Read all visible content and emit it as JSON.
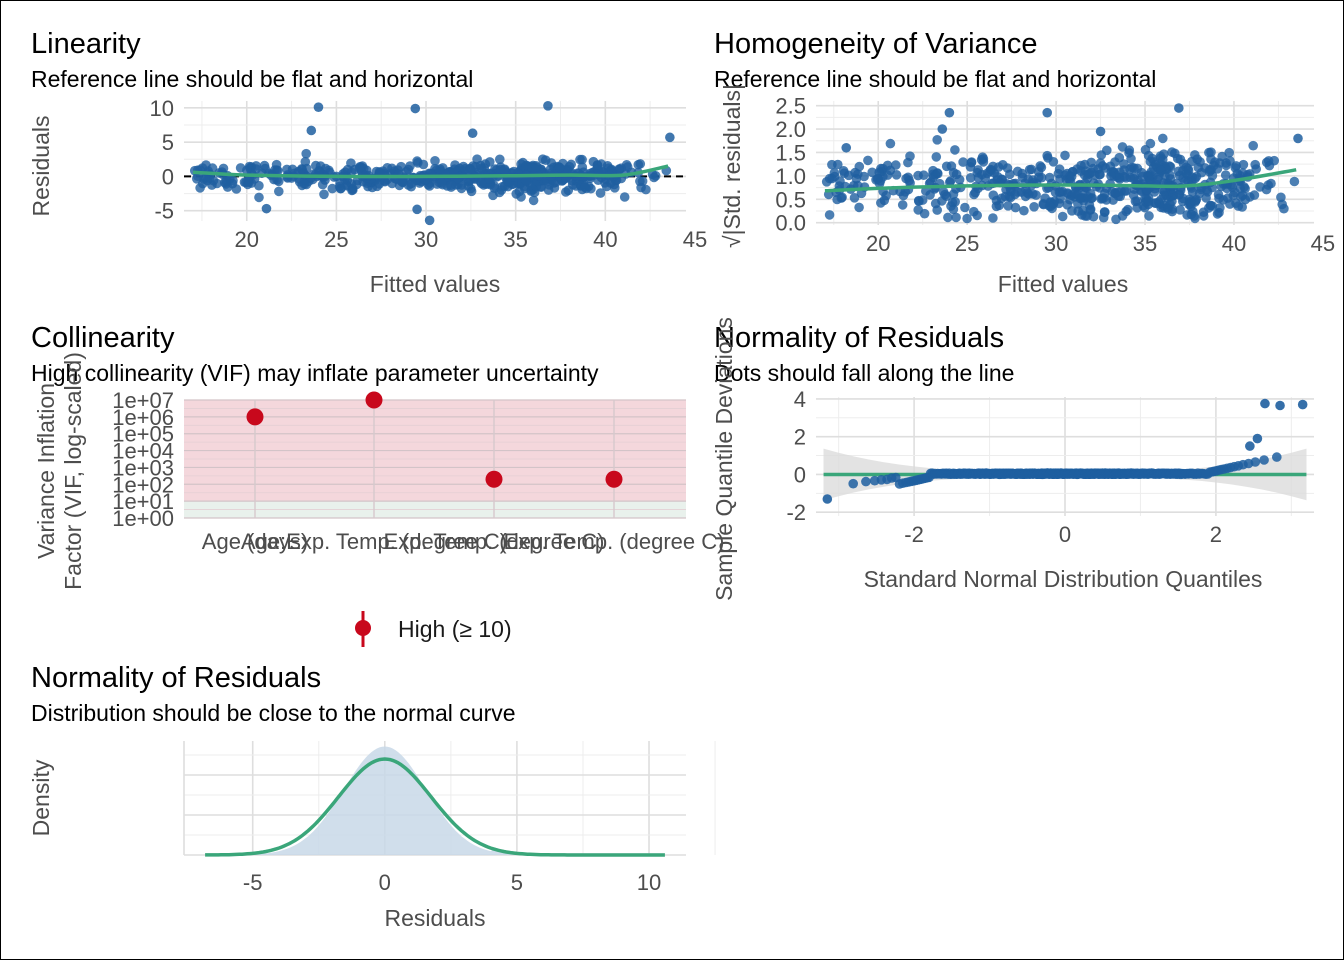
{
  "colors": {
    "points": "#1f5fa0",
    "smooth": "#3aa67a",
    "vif_high": "#c8081c",
    "band_high": "#f4d7dc",
    "band_moderate": "#e9f1ec",
    "density_fill": "#c8d8e8",
    "normal_curve": "#3aa67a",
    "ref_dashed": "#000000",
    "ci_band": "#d9d9d9"
  },
  "chart_data": [
    {
      "id": "linearity",
      "type": "scatter",
      "title": "Linearity",
      "subtitle": "Reference line should be flat and horizontal",
      "xlabel": "Fitted values",
      "ylabel": "Residuals",
      "xlim": [
        16.5,
        44.5
      ],
      "ylim": [
        -6.5,
        11
      ],
      "xticks": [
        20,
        25,
        30,
        35,
        40,
        45
      ],
      "yticks": [
        -5,
        0,
        5,
        10
      ],
      "reference_line": 0,
      "n_points": 600,
      "outliers": [
        {
          "x": 24.0,
          "y": 10.1
        },
        {
          "x": 29.4,
          "y": 9.9
        },
        {
          "x": 36.8,
          "y": 10.3
        },
        {
          "x": 23.6,
          "y": 6.7
        },
        {
          "x": 32.6,
          "y": 6.3
        },
        {
          "x": 43.6,
          "y": 5.7
        },
        {
          "x": 30.2,
          "y": -6.4
        },
        {
          "x": 29.5,
          "y": -4.8
        },
        {
          "x": 21.1,
          "y": -4.7
        }
      ],
      "smooth": [
        {
          "x": 17,
          "y": 0.6
        },
        {
          "x": 20,
          "y": 0.2
        },
        {
          "x": 25,
          "y": 0.0
        },
        {
          "x": 30,
          "y": 0.0
        },
        {
          "x": 35,
          "y": 0.1
        },
        {
          "x": 38,
          "y": 0.2
        },
        {
          "x": 41,
          "y": 0.2
        },
        {
          "x": 43.5,
          "y": 1.5
        }
      ],
      "grid": true
    },
    {
      "id": "homogeneity",
      "type": "scatter",
      "title": "Homogeneity of Variance",
      "subtitle": "Reference line should be flat and horizontal",
      "xlabel": "Fitted values",
      "ylabel": "√|Std. residuals|",
      "xlim": [
        16.5,
        44.5
      ],
      "ylim": [
        -0.05,
        2.6
      ],
      "xticks": [
        20,
        25,
        30,
        35,
        40,
        45
      ],
      "yticks": [
        0.0,
        0.5,
        1.0,
        1.5,
        2.0,
        2.5
      ],
      "n_points": 600,
      "outliers": [
        {
          "x": 24.0,
          "y": 2.35
        },
        {
          "x": 29.5,
          "y": 2.35
        },
        {
          "x": 36.9,
          "y": 2.45
        },
        {
          "x": 23.6,
          "y": 2.0
        },
        {
          "x": 32.5,
          "y": 1.95
        },
        {
          "x": 43.6,
          "y": 1.8
        },
        {
          "x": 18.2,
          "y": 1.6
        }
      ],
      "smooth": [
        {
          "x": 17,
          "y": 0.68
        },
        {
          "x": 22,
          "y": 0.76
        },
        {
          "x": 28,
          "y": 0.8
        },
        {
          "x": 33,
          "y": 0.8
        },
        {
          "x": 37,
          "y": 0.78
        },
        {
          "x": 40,
          "y": 0.9
        },
        {
          "x": 43.5,
          "y": 1.13
        }
      ],
      "grid": true
    },
    {
      "id": "collinearity",
      "type": "scatter",
      "title": "Collinearity",
      "subtitle": "High collinearity (VIF) may inflate parameter uncertainty",
      "xlabel": "",
      "ylabel": "Variance Inflation\nFactor (VIF, log-scaled)",
      "yscale": "log",
      "ylim": [
        1,
        10000000
      ],
      "yticks": [
        "1e+00",
        "1e+01",
        "1e+02",
        "1e+03",
        "1e+04",
        "1e+05",
        "1e+06",
        "1e+07"
      ],
      "categories": [
        "Age (days)",
        "Age:Exp. Temp. (degree C)",
        "Exp. Temp. (degree C)",
        "Exp. Temp. (degree C)"
      ],
      "tick_labels": [
        "Age (days)",
        "Age:Exp. Temp. (degree C)",
        "Exp. Temp. (degree C)",
        "Exp. Temp. (degree C)"
      ],
      "values": [
        1000000,
        10000000,
        200,
        200
      ],
      "legend": {
        "label": "High (≥ 10)",
        "placement": "bottom"
      },
      "grid": true
    },
    {
      "id": "qq",
      "type": "scatter",
      "title": "Normality of Residuals",
      "subtitle": "Dots should fall along the line",
      "xlabel": "Standard Normal Distribution Quantiles",
      "ylabel": "Sample Quantile Deviations",
      "xlim": [
        -3.3,
        3.3
      ],
      "ylim": [
        -2.2,
        4.1
      ],
      "xticks": [
        -2,
        0,
        2
      ],
      "yticks": [
        -2,
        0,
        2,
        4
      ],
      "reference_line": 0,
      "n_points": 600,
      "extremes": [
        {
          "x": -3.15,
          "y": -1.3
        },
        {
          "x": 2.65,
          "y": 3.75
        },
        {
          "x": 2.85,
          "y": 3.65
        },
        {
          "x": 3.15,
          "y": 3.7
        },
        {
          "x": 2.55,
          "y": 1.9
        },
        {
          "x": 2.45,
          "y": 1.5
        }
      ],
      "grid": true
    },
    {
      "id": "density",
      "type": "area",
      "title": "Normality of Residuals",
      "subtitle": "Distribution should be close to the normal curve",
      "xlabel": "Residuals",
      "ylabel": "Density",
      "xlim": [
        -7.6,
        11.4
      ],
      "xticks": [
        -5,
        0,
        5,
        10
      ],
      "normal_curve": {
        "mean": 0,
        "sd": 1.75
      },
      "empirical_peak_ratio": 1.13,
      "grid": true
    }
  ]
}
